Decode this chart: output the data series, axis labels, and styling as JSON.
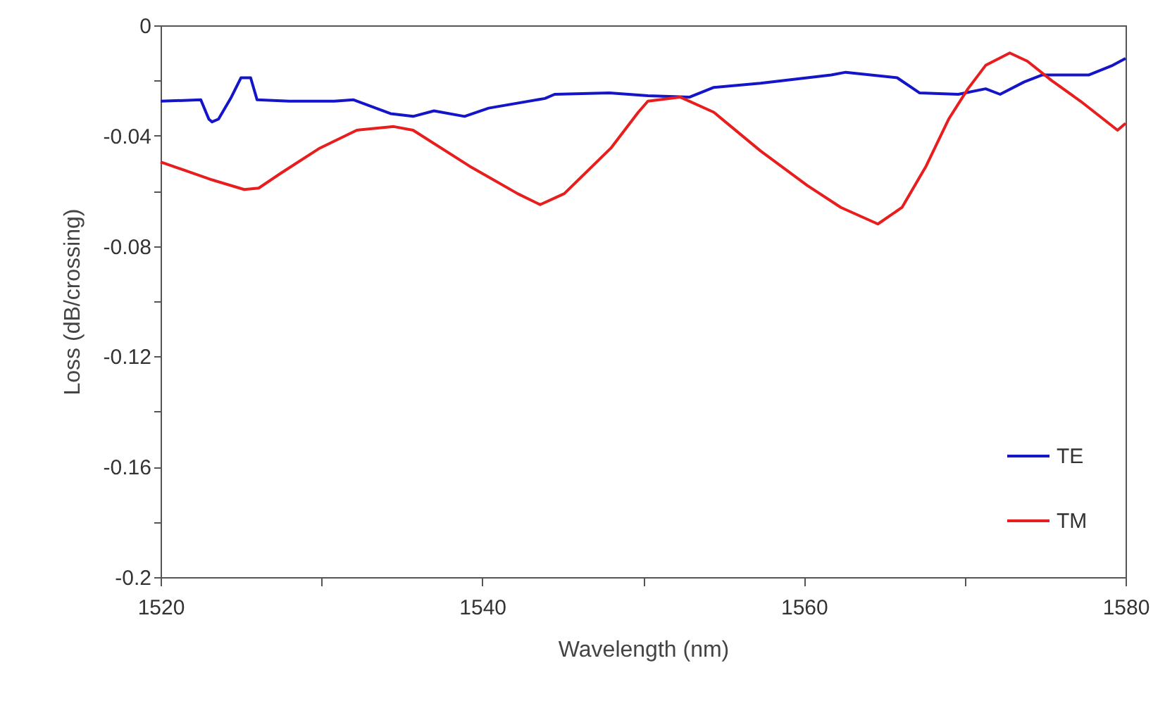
{
  "chart_data": {
    "type": "line",
    "xlabel": "Wavelength (nm)",
    "ylabel": "Loss (dB/crossing)",
    "xlim": [
      1520,
      1580
    ],
    "ylim": [
      -0.2,
      0
    ],
    "xticks": [
      1520,
      {
        "value": 1530,
        "label": null
      },
      1540,
      {
        "value": 1550,
        "label": null
      },
      1560,
      {
        "value": 1570,
        "label": null
      },
      1580
    ],
    "yticks": [
      -0.2,
      {
        "value": -0.18,
        "label": null
      },
      -0.16,
      {
        "value": -0.14,
        "label": null
      },
      -0.12,
      {
        "value": -0.1,
        "label": null
      },
      -0.08,
      {
        "value": -0.06,
        "label": null
      },
      -0.04,
      {
        "value": -0.02,
        "label": null
      },
      0
    ],
    "grid": false,
    "legend": "bottom right",
    "line_style": "solid",
    "marker": "none",
    "series": [
      {
        "name": "TE",
        "color": "#1414c8",
        "x": [
          1520,
          1522.5,
          1523,
          1523.2,
          1523.6,
          1524.4,
          1525,
          1525.6,
          1526,
          1528,
          1530.8,
          1532,
          1534.3,
          1535.7,
          1537,
          1538.9,
          1540.4,
          1543.9,
          1544.5,
          1547.9,
          1550.3,
          1552.9,
          1554.4,
          1557.3,
          1561.7,
          1562.6,
          1565.8,
          1567.2,
          1569.6,
          1571.3,
          1572.2,
          1573.7,
          1574.8,
          1577.7,
          1579.2,
          1580
        ],
        "values": [
          -0.0275,
          -0.027,
          -0.034,
          -0.035,
          -0.034,
          -0.026,
          -0.019,
          -0.019,
          -0.027,
          -0.0275,
          -0.0275,
          -0.027,
          -0.032,
          -0.033,
          -0.031,
          -0.033,
          -0.03,
          -0.0265,
          -0.025,
          -0.0245,
          -0.0255,
          -0.026,
          -0.0225,
          -0.021,
          -0.018,
          -0.017,
          -0.019,
          -0.0245,
          -0.025,
          -0.023,
          -0.025,
          -0.0205,
          -0.018,
          -0.018,
          -0.0145,
          -0.012
        ]
      },
      {
        "name": "TM",
        "color": "#e81e1e",
        "x": [
          1520,
          1523.2,
          1525.2,
          1526.1,
          1527.5,
          1529.9,
          1532.2,
          1534.5,
          1535.7,
          1539.2,
          1542.2,
          1543.6,
          1545.1,
          1548,
          1549.7,
          1550.3,
          1552.3,
          1554.4,
          1557.3,
          1560.2,
          1562.3,
          1564.6,
          1566.1,
          1567.6,
          1569,
          1570.2,
          1571.3,
          1572.8,
          1573.9,
          1575.4,
          1577.2,
          1579.5,
          1580
        ],
        "values": [
          -0.0495,
          -0.056,
          -0.0595,
          -0.059,
          -0.0535,
          -0.0445,
          -0.038,
          -0.0367,
          -0.038,
          -0.051,
          -0.061,
          -0.065,
          -0.061,
          -0.0445,
          -0.0315,
          -0.0275,
          -0.026,
          -0.0315,
          -0.0455,
          -0.058,
          -0.066,
          -0.072,
          -0.066,
          -0.051,
          -0.034,
          -0.023,
          -0.0145,
          -0.01,
          -0.013,
          -0.02,
          -0.0275,
          -0.038,
          -0.0355
        ]
      }
    ]
  }
}
